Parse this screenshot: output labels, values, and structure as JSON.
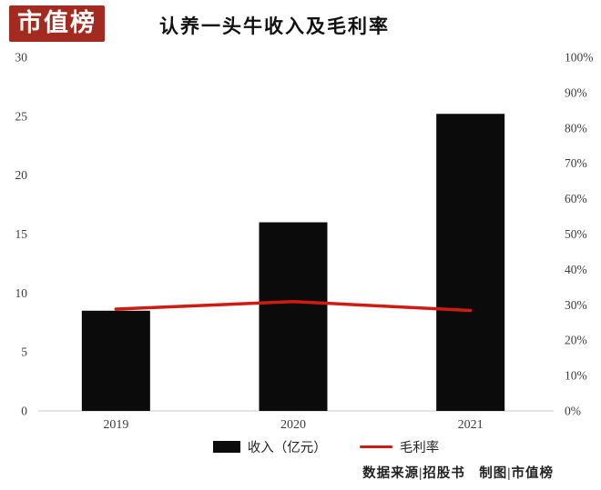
{
  "brand": {
    "logo_text": "市值榜",
    "logo_bg": "#a32a1f"
  },
  "header": {
    "title": "认养一头牛收入及毛利率"
  },
  "chart_data": {
    "type": "bar",
    "title": "认养一头牛收入及毛利率",
    "categories": [
      "2019",
      "2020",
      "2021"
    ],
    "series": [
      {
        "name": "收入（亿元）",
        "type": "bar",
        "axis": "left",
        "color": "#0b0b0b",
        "values": [
          8.5,
          16,
          25.2
        ]
      },
      {
        "name": "毛利率",
        "type": "line",
        "axis": "right",
        "color": "#ce1c13",
        "values": [
          28.8,
          30.9,
          28.4
        ]
      }
    ],
    "left_axis": {
      "min": 0,
      "max": 30,
      "step": 5,
      "ticks": [
        "30",
        "25",
        "20",
        "15",
        "10",
        "5",
        "0"
      ]
    },
    "right_axis": {
      "min": 0,
      "max": 100,
      "step": 10,
      "ticks": [
        "100%",
        "90%",
        "80%",
        "70%",
        "60%",
        "50%",
        "40%",
        "30%",
        "20%",
        "10%",
        "0%"
      ]
    },
    "grid": false,
    "legend_position": "bottom"
  },
  "legend": {
    "revenue_label": "收入（亿元）",
    "margin_label": "毛利率"
  },
  "footer": {
    "credit": "数据来源|招股书　制图|市值榜"
  }
}
